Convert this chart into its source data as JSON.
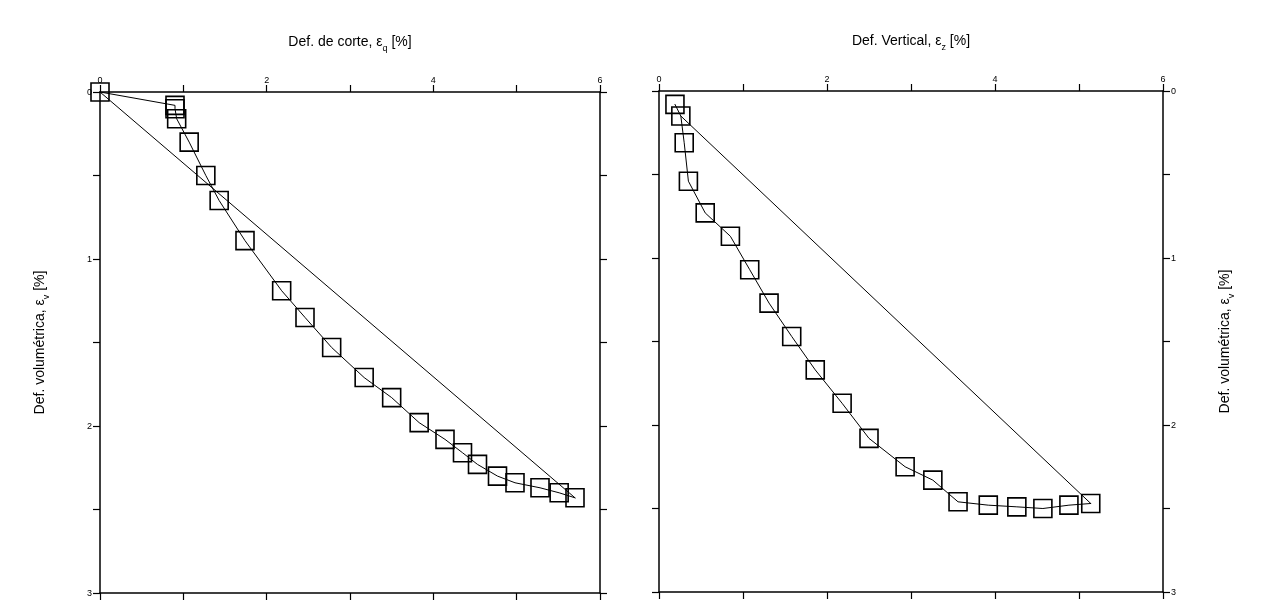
{
  "chart_data": [
    {
      "type": "line",
      "xlabel": "Def. de corte, ε$_{q}$ [%]",
      "ylabel": "Def. volumétrica, ε$_{v}$ [%]",
      "marker": "square",
      "line_style": "solid",
      "xlim": [
        0,
        6
      ],
      "ylim": [
        3,
        0
      ],
      "xticks": [
        0,
        {
          "value": 1,
          "label": null
        },
        2,
        {
          "value": 3,
          "label": null
        },
        4,
        {
          "value": 5,
          "label": null
        },
        6
      ],
      "yticks": [
        0,
        {
          "value": 0.5,
          "label": null
        },
        1,
        {
          "value": 1.5,
          "label": null
        },
        2,
        {
          "value": 2.5,
          "label": null
        },
        3
      ],
      "series": [
        {
          "color": "#000000",
          "x": [
            0,
            0.9,
            0.9,
            0.92,
            1.07,
            1.27,
            1.43,
            1.74,
            2.18,
            2.46,
            2.78,
            3.17,
            3.5,
            3.83,
            4.14,
            4.35,
            4.53,
            4.77,
            4.98,
            5.28,
            5.51,
            5.7
          ],
          "values": [
            0,
            0.08,
            0.1,
            0.16,
            0.3,
            0.5,
            0.65,
            0.89,
            1.19,
            1.35,
            1.53,
            1.71,
            1.83,
            1.98,
            2.08,
            2.16,
            2.23,
            2.3,
            2.34,
            2.37,
            2.4,
            2.43
          ]
        },
        {
          "color": "#000000",
          "marker": "none",
          "x": [
            0,
            5.7
          ],
          "values": [
            0,
            2.43
          ]
        }
      ]
    },
    {
      "type": "line",
      "xlabel": "Def. Vertical, ε$_{z}$ [%]",
      "y2label": "Def. volumétrica, ε$_{v}$ [%]",
      "marker": "square",
      "line_style": "solid",
      "xlim": [
        0,
        6
      ],
      "y2lim": [
        3,
        0
      ],
      "xticks": [
        0,
        {
          "value": 1,
          "label": null
        },
        2,
        {
          "value": 3,
          "label": null
        },
        4,
        {
          "value": 5,
          "label": null
        },
        6
      ],
      "y2ticks": [
        0,
        {
          "value": 0.5,
          "label": null
        },
        1,
        {
          "value": 1.5,
          "label": null
        },
        2,
        {
          "value": 2.5,
          "label": null
        },
        3
      ],
      "series": [
        {
          "color": "#000000",
          "axis": "y2",
          "x": [
            0.19,
            0.26,
            0.3,
            0.35,
            0.55,
            0.85,
            1.08,
            1.31,
            1.58,
            1.86,
            2.18,
            2.5,
            2.93,
            3.26,
            3.56,
            3.92,
            4.26,
            4.57,
            4.88,
            5.14
          ],
          "values": [
            0.08,
            0.15,
            0.31,
            0.54,
            0.73,
            0.87,
            1.07,
            1.27,
            1.47,
            1.67,
            1.87,
            2.08,
            2.25,
            2.33,
            2.46,
            2.48,
            2.49,
            2.5,
            2.48,
            2.47
          ]
        },
        {
          "color": "#000000",
          "axis": "y2",
          "marker": "none",
          "x": [
            0.26,
            5.14
          ],
          "values": [
            0.15,
            2.47
          ]
        }
      ]
    }
  ]
}
